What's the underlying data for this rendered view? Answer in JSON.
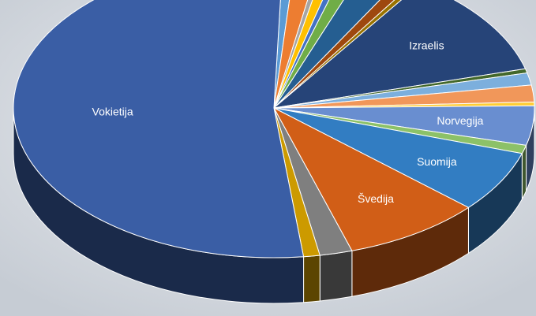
{
  "chart_data": {
    "type": "pie",
    "style": "3d-tilted",
    "title": "",
    "slices": [
      {
        "label": "",
        "value": 0.75,
        "color": "#5b9bd5"
      },
      {
        "label": "",
        "value": 1.5,
        "color": "#ed7d31"
      },
      {
        "label": "",
        "value": 0.4,
        "color": "#a5a5a5"
      },
      {
        "label": "",
        "value": 0.8,
        "color": "#ffc000"
      },
      {
        "label": "",
        "value": 0.5,
        "color": "#4472c4"
      },
      {
        "label": "",
        "value": 1.1,
        "color": "#70ad47"
      },
      {
        "label": "",
        "value": 2.5,
        "color": "#255e91"
      },
      {
        "label": "",
        "value": 0.9,
        "color": "#9e480e"
      },
      {
        "label": "",
        "value": 0.4,
        "color": "#997300"
      },
      {
        "label": "Izraelis",
        "value": 11.2,
        "color": "#264478"
      },
      {
        "label": "",
        "value": 0.45,
        "color": "#43682b"
      },
      {
        "label": "",
        "value": 1.3,
        "color": "#7cafdd"
      },
      {
        "label": "",
        "value": 1.8,
        "color": "#f1975a"
      },
      {
        "label": "",
        "value": 0.4,
        "color": "#ffcd33"
      },
      {
        "label": "Norvegija",
        "value": 4.2,
        "color": "#698ed0"
      },
      {
        "label": "",
        "value": 0.9,
        "color": "#8cc168"
      },
      {
        "label": "Suomija",
        "value": 6.6,
        "color": "#327dc2"
      },
      {
        "label": "Švedija",
        "value": 8.5,
        "color": "#d15e17"
      },
      {
        "label": "",
        "value": 2.0,
        "color": "#7f7f7f"
      },
      {
        "label": "",
        "value": 1.0,
        "color": "#cc9a00"
      },
      {
        "label": "Vokietija",
        "value": 51.9,
        "color": "#3a5ea5"
      }
    ]
  }
}
